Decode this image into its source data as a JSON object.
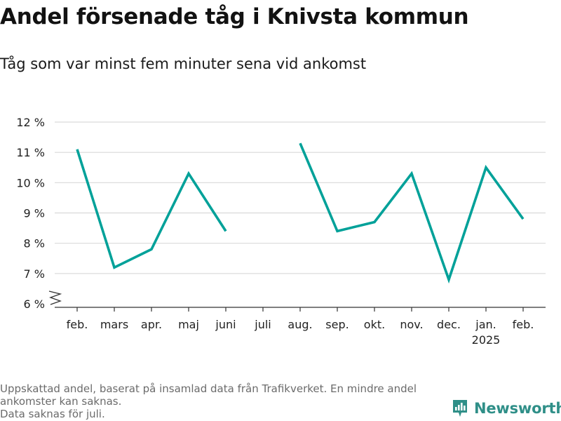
{
  "title": "Andel försenade tåg i Knivsta kommun",
  "subtitle": "Tåg som var minst fem minuter sena vid ankomst",
  "footnote": {
    "line1": "Uppskattad andel, baserat på insamlad data från Trafikverket. En mindre andel ankomster kan saknas.",
    "line2": "Data saknas för juli."
  },
  "brand": {
    "name": "Newsworthy",
    "icon": "newsworthy-logo-icon",
    "color": "#2f8f88"
  },
  "chart_data": {
    "type": "line",
    "categories": [
      "feb.",
      "mars",
      "apr.",
      "maj",
      "juni",
      "juli",
      "aug.",
      "sep.",
      "okt.",
      "nov.",
      "dec.",
      "jan.",
      "feb."
    ],
    "category_sublabels": [
      "",
      "",
      "",
      "",
      "",
      "",
      "",
      "",
      "",
      "",
      "",
      "2025",
      ""
    ],
    "series": [
      {
        "values": [
          11.1,
          7.2,
          7.8,
          10.3,
          8.4,
          null,
          11.3,
          8.4,
          8.7,
          10.3,
          6.8,
          10.5,
          8.8
        ],
        "color": "#00a199"
      }
    ],
    "y_ticks": [
      6,
      7,
      8,
      9,
      10,
      11,
      12
    ],
    "y_tick_labels": [
      "6 %",
      "7 %",
      "8 %",
      "9 %",
      "10 %",
      "11 %",
      "12 %"
    ],
    "ylim": [
      6,
      12
    ],
    "grid": true,
    "axis_break": true
  }
}
